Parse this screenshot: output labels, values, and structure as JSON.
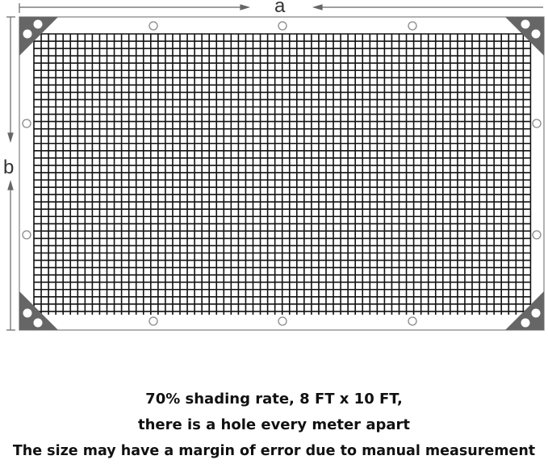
{
  "dimensions": {
    "width_label": "a",
    "height_label": "b"
  },
  "net": {
    "frame_color": "#999999",
    "corner_color": "#666666",
    "mesh_color": "#111111",
    "grommets_per_side": {
      "top": 3,
      "bottom": 3,
      "left": 2,
      "right": 2
    }
  },
  "caption": {
    "line1": "70% shading  rate, 8 FT x 10 FT,",
    "line2": "there is a hole every meter apart",
    "line3": "The size  may  have a margin of error due to manual measurement"
  }
}
